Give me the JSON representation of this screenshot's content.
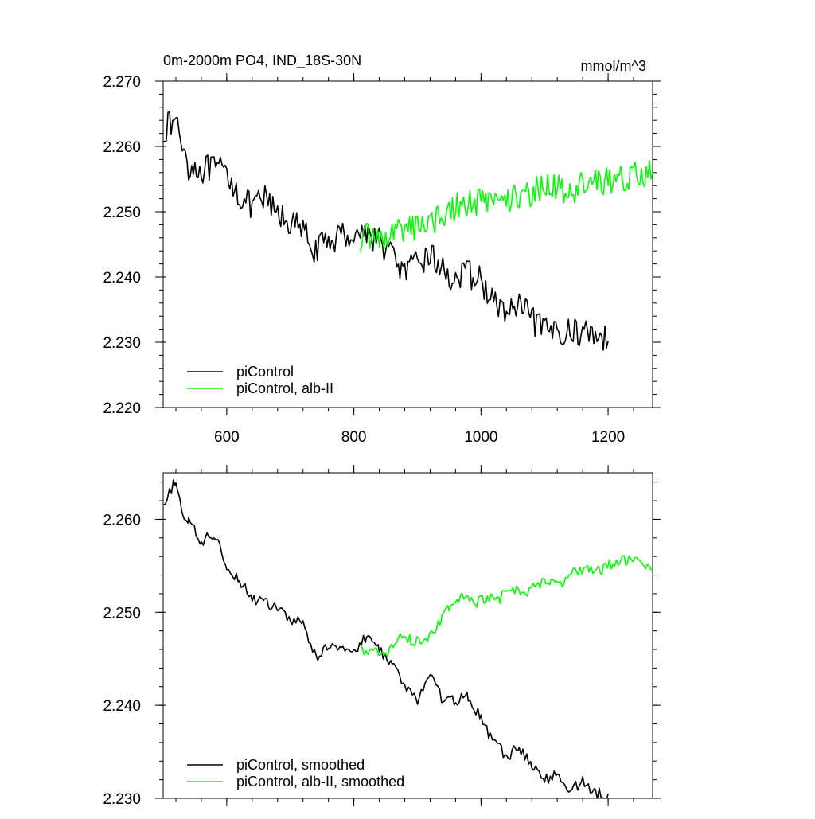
{
  "chart_data": [
    {
      "type": "line",
      "title": "0m-2000m PO4, IND_18S-30N",
      "units": "mmol/m^3",
      "xlim": [
        500,
        1270
      ],
      "ylim": [
        2.22,
        2.27
      ],
      "xticks": [
        600,
        800,
        1000,
        1200
      ],
      "xtick_labels": [
        "600",
        "800",
        "1000",
        "1200"
      ],
      "yticks": [
        2.22,
        2.23,
        2.24,
        2.25,
        2.26,
        2.27
      ],
      "ytick_labels": [
        "2.220",
        "2.230",
        "2.240",
        "2.250",
        "2.260",
        "2.270"
      ],
      "legend_position": "bottom-left",
      "series": [
        {
          "name": "piControl",
          "color": "#000000",
          "x": [
            500,
            520,
            540,
            560,
            580,
            600,
            620,
            640,
            660,
            680,
            700,
            720,
            740,
            760,
            780,
            800,
            820,
            840,
            860,
            880,
            900,
            920,
            940,
            960,
            980,
            1000,
            1020,
            1040,
            1060,
            1080,
            1100,
            1120,
            1140,
            1160,
            1180,
            1200
          ],
          "values": [
            2.2625,
            2.264,
            2.257,
            2.2565,
            2.2565,
            2.256,
            2.2525,
            2.2505,
            2.252,
            2.2495,
            2.2485,
            2.247,
            2.244,
            2.2455,
            2.2465,
            2.2465,
            2.247,
            2.2455,
            2.2435,
            2.2405,
            2.242,
            2.2435,
            2.241,
            2.2395,
            2.2405,
            2.2395,
            2.236,
            2.2345,
            2.2355,
            2.2335,
            2.2315,
            2.232,
            2.2315,
            2.2315,
            2.2315,
            2.2302
          ]
        },
        {
          "name": "piControl, alb-II",
          "color": "#00ff00",
          "x": [
            810,
            830,
            850,
            870,
            890,
            910,
            930,
            950,
            970,
            990,
            1010,
            1030,
            1050,
            1070,
            1090,
            1110,
            1130,
            1150,
            1170,
            1190,
            1210,
            1230,
            1250,
            1270
          ],
          "values": [
            2.246,
            2.2465,
            2.2455,
            2.2475,
            2.2475,
            2.248,
            2.249,
            2.25,
            2.2515,
            2.2515,
            2.2515,
            2.2525,
            2.252,
            2.2525,
            2.2535,
            2.254,
            2.2535,
            2.2535,
            2.2545,
            2.2545,
            2.255,
            2.2555,
            2.2555,
            2.256
          ]
        }
      ]
    },
    {
      "type": "line",
      "xlim": [
        500,
        1270
      ],
      "ylim": [
        2.23,
        2.265
      ],
      "xticks": [
        600,
        800,
        1000,
        1200
      ],
      "yticks": [
        2.23,
        2.24,
        2.25,
        2.26
      ],
      "ytick_labels": [
        "2.230",
        "2.240",
        "2.250",
        "2.260"
      ],
      "legend_position": "bottom-left",
      "series": [
        {
          "name": "piControl, smoothed",
          "color": "#000000",
          "x": [
            500,
            510,
            520,
            530,
            540,
            560,
            580,
            600,
            620,
            640,
            660,
            680,
            700,
            720,
            740,
            760,
            780,
            800,
            820,
            840,
            860,
            880,
            900,
            920,
            940,
            960,
            980,
            1000,
            1020,
            1040,
            1060,
            1080,
            1100,
            1120,
            1140,
            1160,
            1180,
            1200
          ],
          "values": [
            2.261,
            2.2628,
            2.2643,
            2.2605,
            2.2598,
            2.2575,
            2.2585,
            2.255,
            2.2535,
            2.2515,
            2.251,
            2.2505,
            2.249,
            2.249,
            2.245,
            2.2465,
            2.2465,
            2.2455,
            2.2475,
            2.246,
            2.2445,
            2.242,
            2.2405,
            2.2435,
            2.2405,
            2.2405,
            2.241,
            2.2385,
            2.236,
            2.2345,
            2.2355,
            2.2335,
            2.232,
            2.2325,
            2.231,
            2.2318,
            2.2305,
            2.2305
          ]
        },
        {
          "name": "piControl, alb-II, smoothed",
          "color": "#00ff00",
          "x": [
            810,
            830,
            850,
            870,
            890,
            910,
            930,
            950,
            970,
            990,
            1010,
            1030,
            1050,
            1070,
            1090,
            1110,
            1130,
            1150,
            1170,
            1190,
            1210,
            1230,
            1250,
            1270
          ],
          "values": [
            2.246,
            2.2458,
            2.2452,
            2.2475,
            2.247,
            2.2465,
            2.2485,
            2.2505,
            2.2515,
            2.251,
            2.2515,
            2.2515,
            2.2525,
            2.252,
            2.253,
            2.2535,
            2.253,
            2.2545,
            2.2545,
            2.2545,
            2.2555,
            2.2555,
            2.2555,
            2.2545
          ]
        }
      ]
    }
  ]
}
